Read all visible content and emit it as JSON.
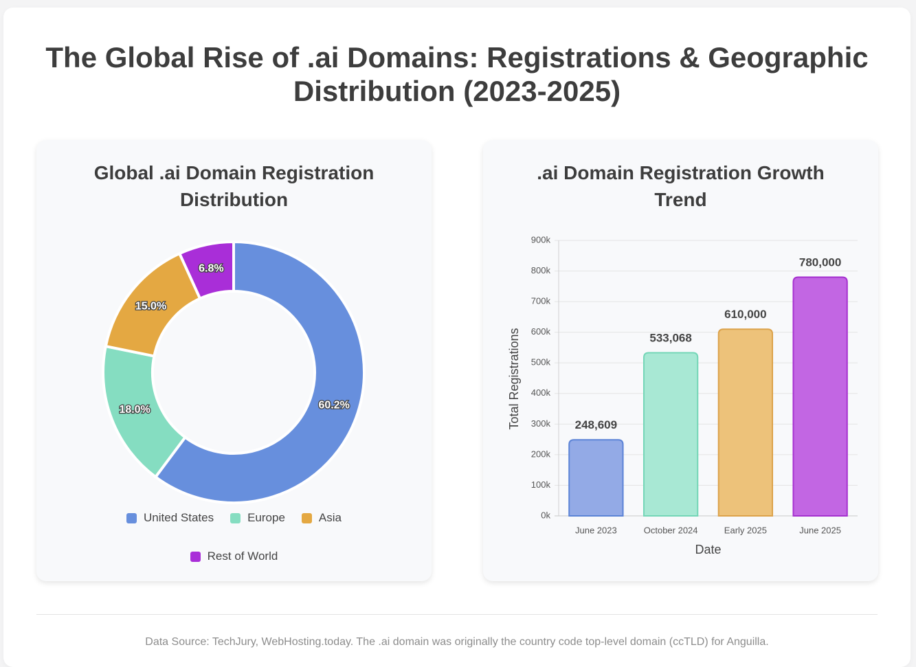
{
  "title": "The Global Rise of .ai Domains: Registrations & Geographic Distribution (2023-2025)",
  "footer": "Data Source: TechJury, WebHosting.today. The .ai domain was originally the country code top-level domain (ccTLD) for Anguilla.",
  "chart_data": [
    {
      "type": "pie",
      "variant": "doughnut",
      "title": "Global .ai Domain Registration Distribution",
      "categories": [
        "United States",
        "Europe",
        "Asia",
        "Rest of World"
      ],
      "values": [
        60.2,
        18.0,
        15.0,
        6.8
      ],
      "value_labels": [
        "60.2%",
        "18.0%",
        "15.0%",
        "6.8%"
      ],
      "colors": [
        "#678fdd",
        "#85ddc1",
        "#e4a842",
        "#a92ed8"
      ],
      "legend": "bottom"
    },
    {
      "type": "bar",
      "title": ".ai Domain Registration Growth Trend",
      "categories": [
        "June 2023",
        "October 2024",
        "Early 2025",
        "June 2025"
      ],
      "values": [
        248609,
        533068,
        610000,
        780000
      ],
      "value_labels": [
        "248,609",
        "533,068",
        "610,000",
        "780,000"
      ],
      "xlabel": "Date",
      "ylabel": "Total Registrations",
      "ylim": [
        0,
        900000
      ],
      "yticks": [
        0,
        100000,
        200000,
        300000,
        400000,
        500000,
        600000,
        700000,
        800000,
        900000
      ],
      "ytick_labels": [
        "0k",
        "100k",
        "200k",
        "300k",
        "400k",
        "500k",
        "600k",
        "700k",
        "800k",
        "900k"
      ],
      "grid": true,
      "colors": [
        "#93aae6",
        "#a8e8d4",
        "#edc27a",
        "#c266e3"
      ],
      "border_colors": [
        "#5b83d6",
        "#74d6b7",
        "#dca24a",
        "#a530cf"
      ]
    }
  ]
}
